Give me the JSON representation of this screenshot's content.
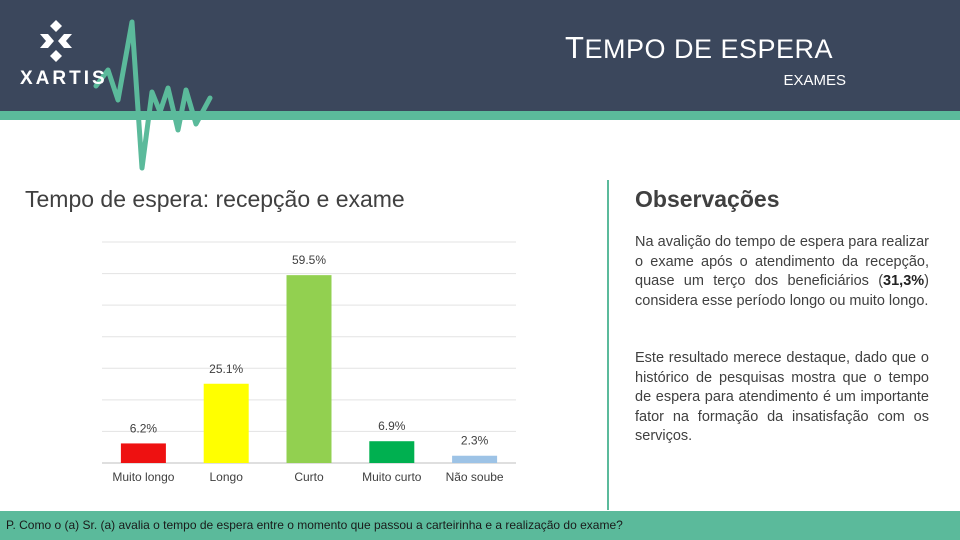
{
  "header": {
    "logo_text": "XARTIS",
    "title_first": "T",
    "title_rest": "EMPO DE ESPERA",
    "subtitle": "EXAMES",
    "background_color": "#3b475c",
    "accent_color": "#5bba9b"
  },
  "left": {
    "section_title": "Tempo de espera: recepção e exame"
  },
  "chart_data": {
    "type": "bar",
    "categories": [
      "Muito longo",
      "Longo",
      "Curto",
      "Muito curto",
      "Não soube"
    ],
    "values": [
      6.2,
      25.1,
      59.5,
      6.9,
      2.3
    ],
    "value_labels": [
      "6.2%",
      "25.1%",
      "59.5%",
      "6.9%",
      "2.3%"
    ],
    "colors": [
      "#ee1111",
      "#ffff00",
      "#92d050",
      "#00b050",
      "#9dc3e6"
    ],
    "title": "",
    "xlabel": "",
    "ylabel": "",
    "ylim": [
      0,
      70
    ],
    "grid": true,
    "legend": "none"
  },
  "observations": {
    "title": "Observações",
    "p1_a": "Na avalição do tempo de espera para realizar o exame após o atendimento da recepção, quase um terço dos beneficiários (",
    "p1_bold": "31,3%",
    "p1_b": ") considera esse período longo ou muito longo.",
    "p2": "Este resultado merece destaque, dado que o histórico de pesquisas mostra que o tempo de espera para atendimento é um importante fator na formação da insatisfação com os serviços."
  },
  "footer": {
    "question": "P. Como o (a) Sr. (a) avalia o tempo de espera entre o momento que passou a carteirinha e a realização do exame?"
  }
}
